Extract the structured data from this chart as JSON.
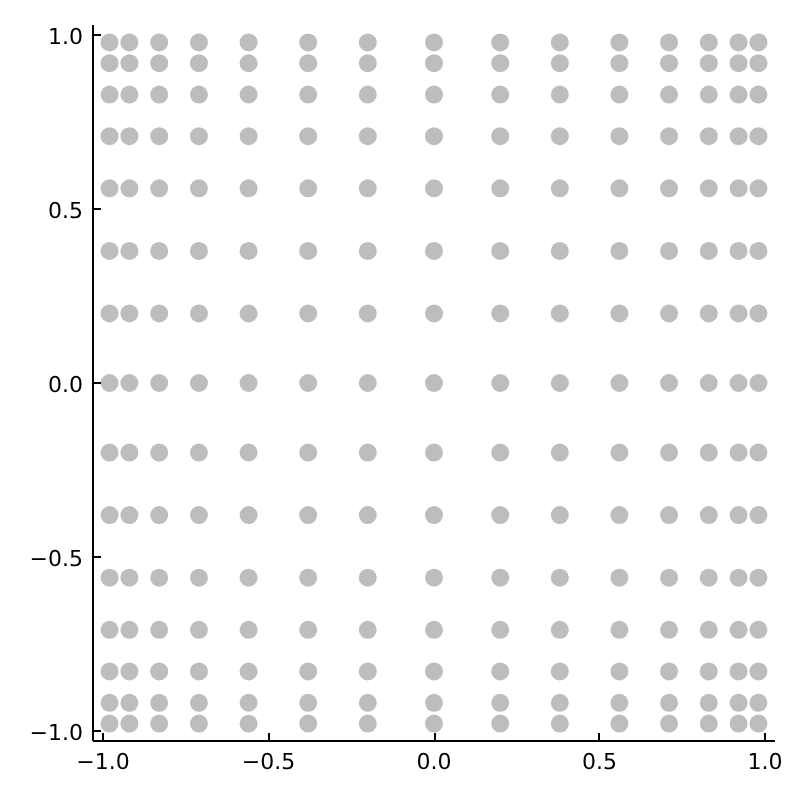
{
  "chart_data": {
    "type": "scatter",
    "color": "#bdbdbd",
    "marker": "circle",
    "grid": false,
    "x": [
      -0.98,
      -0.98,
      -0.98,
      -0.98,
      -0.98,
      -0.98,
      -0.98,
      -0.98,
      -0.98,
      -0.98,
      -0.98,
      -0.98,
      -0.98,
      -0.98,
      -0.98,
      -0.92,
      -0.92,
      -0.92,
      -0.92,
      -0.92,
      -0.92,
      -0.92,
      -0.92,
      -0.92,
      -0.92,
      -0.92,
      -0.92,
      -0.92,
      -0.92,
      -0.92,
      -0.83,
      -0.83,
      -0.83,
      -0.83,
      -0.83,
      -0.83,
      -0.83,
      -0.83,
      -0.83,
      -0.83,
      -0.83,
      -0.83,
      -0.83,
      -0.83,
      -0.83,
      -0.71,
      -0.71,
      -0.71,
      -0.71,
      -0.71,
      -0.71,
      -0.71,
      -0.71,
      -0.71,
      -0.71,
      -0.71,
      -0.71,
      -0.71,
      -0.71,
      -0.71,
      -0.56,
      -0.56,
      -0.56,
      -0.56,
      -0.56,
      -0.56,
      -0.56,
      -0.56,
      -0.56,
      -0.56,
      -0.56,
      -0.56,
      -0.56,
      -0.56,
      -0.56,
      -0.38,
      -0.38,
      -0.38,
      -0.38,
      -0.38,
      -0.38,
      -0.38,
      -0.38,
      -0.38,
      -0.38,
      -0.38,
      -0.38,
      -0.38,
      -0.38,
      -0.38,
      -0.2,
      -0.2,
      -0.2,
      -0.2,
      -0.2,
      -0.2,
      -0.2,
      -0.2,
      -0.2,
      -0.2,
      -0.2,
      -0.2,
      -0.2,
      -0.2,
      -0.2,
      0,
      0,
      0,
      0,
      0,
      0,
      0,
      0,
      0,
      0,
      0,
      0,
      0,
      0,
      0,
      0.2,
      0.2,
      0.2,
      0.2,
      0.2,
      0.2,
      0.2,
      0.2,
      0.2,
      0.2,
      0.2,
      0.2,
      0.2,
      0.2,
      0.2,
      0.38,
      0.38,
      0.38,
      0.38,
      0.38,
      0.38,
      0.38,
      0.38,
      0.38,
      0.38,
      0.38,
      0.38,
      0.38,
      0.38,
      0.38,
      0.56,
      0.56,
      0.56,
      0.56,
      0.56,
      0.56,
      0.56,
      0.56,
      0.56,
      0.56,
      0.56,
      0.56,
      0.56,
      0.56,
      0.56,
      0.71,
      0.71,
      0.71,
      0.71,
      0.71,
      0.71,
      0.71,
      0.71,
      0.71,
      0.71,
      0.71,
      0.71,
      0.71,
      0.71,
      0.71,
      0.83,
      0.83,
      0.83,
      0.83,
      0.83,
      0.83,
      0.83,
      0.83,
      0.83,
      0.83,
      0.83,
      0.83,
      0.83,
      0.83,
      0.83,
      0.92,
      0.92,
      0.92,
      0.92,
      0.92,
      0.92,
      0.92,
      0.92,
      0.92,
      0.92,
      0.92,
      0.92,
      0.92,
      0.92,
      0.92,
      0.98,
      0.98,
      0.98,
      0.98,
      0.98,
      0.98,
      0.98,
      0.98,
      0.98,
      0.98,
      0.98,
      0.98,
      0.98,
      0.98,
      0.98
    ],
    "values": [
      -0.98,
      -0.92,
      -0.83,
      -0.71,
      -0.56,
      -0.38,
      -0.2,
      0,
      0.2,
      0.38,
      0.56,
      0.71,
      0.83,
      0.92,
      0.98,
      -0.98,
      -0.92,
      -0.83,
      -0.71,
      -0.56,
      -0.38,
      -0.2,
      0,
      0.2,
      0.38,
      0.56,
      0.71,
      0.83,
      0.92,
      0.98,
      -0.98,
      -0.92,
      -0.83,
      -0.71,
      -0.56,
      -0.38,
      -0.2,
      0,
      0.2,
      0.38,
      0.56,
      0.71,
      0.83,
      0.92,
      0.98,
      -0.98,
      -0.92,
      -0.83,
      -0.71,
      -0.56,
      -0.38,
      -0.2,
      0,
      0.2,
      0.38,
      0.56,
      0.71,
      0.83,
      0.92,
      0.98,
      -0.98,
      -0.92,
      -0.83,
      -0.71,
      -0.56,
      -0.38,
      -0.2,
      0,
      0.2,
      0.38,
      0.56,
      0.71,
      0.83,
      0.92,
      0.98,
      -0.98,
      -0.92,
      -0.83,
      -0.71,
      -0.56,
      -0.38,
      -0.2,
      0,
      0.2,
      0.38,
      0.56,
      0.71,
      0.83,
      0.92,
      0.98,
      -0.98,
      -0.92,
      -0.83,
      -0.71,
      -0.56,
      -0.38,
      -0.2,
      0,
      0.2,
      0.38,
      0.56,
      0.71,
      0.83,
      0.92,
      0.98,
      -0.98,
      -0.92,
      -0.83,
      -0.71,
      -0.56,
      -0.38,
      -0.2,
      0,
      0.2,
      0.38,
      0.56,
      0.71,
      0.83,
      0.92,
      0.98,
      -0.98,
      -0.92,
      -0.83,
      -0.71,
      -0.56,
      -0.38,
      -0.2,
      0,
      0.2,
      0.38,
      0.56,
      0.71,
      0.83,
      0.92,
      0.98,
      -0.98,
      -0.92,
      -0.83,
      -0.71,
      -0.56,
      -0.38,
      -0.2,
      0,
      0.2,
      0.38,
      0.56,
      0.71,
      0.83,
      0.92,
      0.98,
      -0.98,
      -0.92,
      -0.83,
      -0.71,
      -0.56,
      -0.38,
      -0.2,
      0,
      0.2,
      0.38,
      0.56,
      0.71,
      0.83,
      0.92,
      0.98,
      -0.98,
      -0.92,
      -0.83,
      -0.71,
      -0.56,
      -0.38,
      -0.2,
      0,
      0.2,
      0.38,
      0.56,
      0.71,
      0.83,
      0.92,
      0.98,
      -0.98,
      -0.92,
      -0.83,
      -0.71,
      -0.56,
      -0.38,
      -0.2,
      0,
      0.2,
      0.38,
      0.56,
      0.71,
      0.83,
      0.92,
      0.98,
      -0.98,
      -0.92,
      -0.83,
      -0.71,
      -0.56,
      -0.38,
      -0.2,
      0,
      0.2,
      0.38,
      0.56,
      0.71,
      0.83,
      0.92,
      0.98,
      -0.98,
      -0.92,
      -0.83,
      -0.71,
      -0.56,
      -0.38,
      -0.2,
      0,
      0.2,
      0.38,
      0.56,
      0.71,
      0.83,
      0.92,
      0.98
    ],
    "xlim": [
      -1.03,
      1.03
    ],
    "ylim": [
      -1.03,
      1.03
    ],
    "xticks": [
      {
        "value": -1,
        "label": "−1.0"
      },
      {
        "value": -0.5,
        "label": "−0.5"
      },
      {
        "value": 0,
        "label": "0.0"
      },
      {
        "value": 0.5,
        "label": "0.5"
      },
      {
        "value": 1,
        "label": "1.0"
      }
    ],
    "yticks": [
      {
        "value": -1,
        "label": "−1.0"
      },
      {
        "value": -0.5,
        "label": "−0.5"
      },
      {
        "value": 0,
        "label": "0.0"
      },
      {
        "value": 0.5,
        "label": "0.5"
      },
      {
        "value": 1,
        "label": "1.0"
      }
    ]
  }
}
